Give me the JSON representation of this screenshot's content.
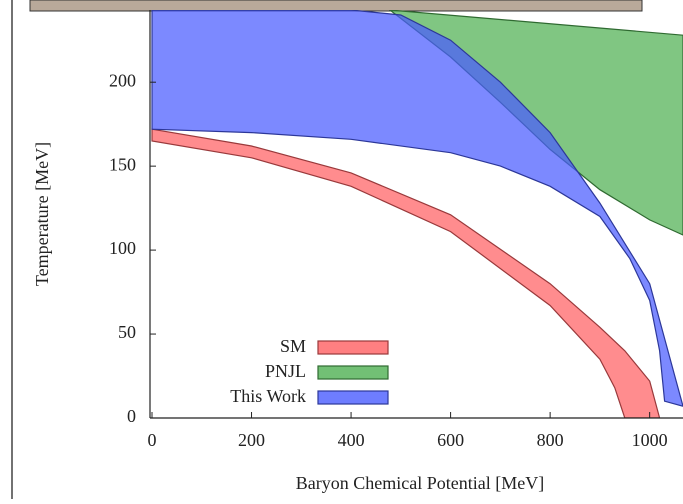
{
  "chart_data": {
    "type": "band",
    "x_label": "Baryon Chemical Potential  [MeV]",
    "y_label": "Temperature  [MeV]",
    "xlim": [
      0,
      1067
    ],
    "ylim": [
      0,
      243
    ],
    "xticks": [
      0,
      200,
      400,
      600,
      800,
      1000
    ],
    "yticks": [
      0,
      50,
      100,
      150,
      200
    ],
    "legend": "lower-left",
    "series": [
      {
        "name": "SM",
        "color": "#ff5f62",
        "x_upper": [
          0,
          200,
          400,
          600,
          800,
          900,
          950,
          1000,
          1020
        ],
        "upper": [
          172,
          162,
          146,
          121,
          80,
          54,
          40,
          22,
          0
        ],
        "x_lower": [
          0,
          200,
          400,
          600,
          800,
          900,
          930,
          950
        ],
        "lower": [
          165,
          155,
          138,
          111,
          67,
          35,
          18,
          0
        ]
      },
      {
        "name": "PNJL",
        "color": "#4fb052",
        "x_upper": [
          478,
          1067
        ],
        "upper": [
          243,
          228
        ],
        "x_lower": [
          478,
          600,
          700,
          800,
          900,
          1000,
          1067
        ],
        "lower": [
          243,
          215,
          188,
          160,
          136,
          118,
          109
        ]
      },
      {
        "name": "This Work",
        "color": "#4a5cff",
        "x_upper": [
          0,
          400,
          500,
          600,
          700,
          800,
          900,
          1000,
          1067
        ],
        "upper": [
          243,
          243,
          240,
          225,
          200,
          170,
          128,
          80,
          7
        ],
        "x_lower": [
          0,
          200,
          400,
          600,
          700,
          800,
          900,
          960,
          1000,
          1020,
          1030,
          1067
        ],
        "lower": [
          172,
          170,
          166,
          158,
          150,
          138,
          120,
          95,
          70,
          40,
          10,
          7
        ]
      }
    ]
  }
}
